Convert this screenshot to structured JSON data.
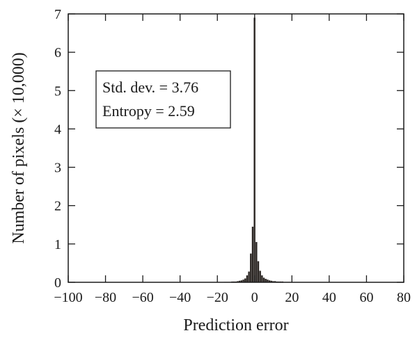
{
  "chart_data": {
    "type": "bar",
    "xlabel": "Prediction error",
    "ylabel": "Number of pixels (× 10,000)",
    "xlim": [
      -100,
      80
    ],
    "ylim": [
      0,
      7
    ],
    "xticks": [
      -100,
      -80,
      -60,
      -40,
      -20,
      0,
      20,
      40,
      60,
      80
    ],
    "yticks": [
      0,
      1,
      2,
      3,
      4,
      5,
      6,
      7
    ],
    "xtick_labels": [
      "−100",
      "−80",
      "−60",
      "−40",
      "−20",
      "0",
      "20",
      "40",
      "60",
      "80"
    ],
    "ytick_labels": [
      "0",
      "1",
      "2",
      "3",
      "4",
      "5",
      "6",
      "7"
    ],
    "grid": false,
    "annotations": [
      "Std. dev. = 3.76",
      "Entropy = 2.59"
    ],
    "x": [
      -16,
      -15,
      -14,
      -13,
      -12,
      -11,
      -10,
      -9,
      -8,
      -7,
      -6,
      -5,
      -4,
      -3,
      -2,
      -1,
      0,
      1,
      2,
      3,
      4,
      5,
      6,
      7,
      8,
      9,
      10,
      11,
      12,
      13,
      14,
      15,
      16,
      17,
      18,
      19,
      20
    ],
    "values": [
      0.01,
      0.01,
      0.01,
      0.01,
      0.02,
      0.02,
      0.02,
      0.03,
      0.04,
      0.05,
      0.07,
      0.1,
      0.18,
      0.28,
      0.75,
      1.45,
      6.9,
      1.05,
      0.55,
      0.3,
      0.18,
      0.12,
      0.09,
      0.07,
      0.05,
      0.04,
      0.03,
      0.03,
      0.02,
      0.02,
      0.02,
      0.02,
      0.01,
      0.01,
      0.01,
      0.01,
      0.01
    ],
    "colors": {
      "bars": "#2a2522",
      "axes": "#1a1a1a",
      "background": "#ffffff"
    }
  }
}
